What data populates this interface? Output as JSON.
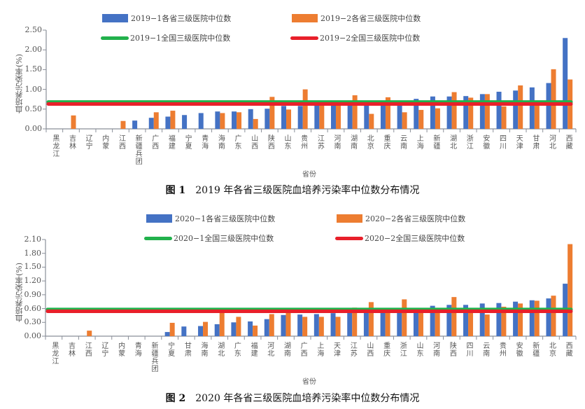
{
  "chart_data": [
    {
      "type": "bar",
      "title": "2019 年各省三级医院血培养污染率中位数分布情况",
      "figure_label": "图 1",
      "xlabel": "省份",
      "ylabel": "血培养污染率(%)",
      "ylim": [
        0,
        2.5
      ],
      "yticks": [
        "0.00",
        "0.50",
        "1.00",
        "1.50",
        "2.00",
        "2.50"
      ],
      "categories": [
        "黑龙江",
        "吉林",
        "辽宁",
        "内蒙",
        "江西",
        "新疆兵团",
        "广西",
        "福建",
        "宁夏",
        "青海",
        "海南",
        "广东",
        "山西",
        "陕西",
        "山东",
        "贵州",
        "江苏",
        "河南",
        "湖南",
        "北京",
        "重庆",
        "云南",
        "上海",
        "新疆",
        "湖北",
        "浙江",
        "安徽",
        "四川",
        "天津",
        "甘肃",
        "河北",
        "西藏"
      ],
      "series": [
        {
          "name": "2019−1各省三级医院中位数",
          "color": "#4472C4",
          "values": [
            0,
            0,
            0,
            0,
            0,
            0.21,
            0.28,
            0.31,
            0.35,
            0.4,
            0.44,
            0.44,
            0.5,
            0.51,
            0.58,
            0.58,
            0.62,
            0.62,
            0.62,
            0.62,
            0.62,
            0.62,
            0.76,
            0.82,
            0.82,
            0.83,
            0.88,
            0.94,
            0.97,
            1.05,
            1.16,
            2.3
          ]
        },
        {
          "name": "2019−2各省三级医院中位数",
          "color": "#ED7D31",
          "values": [
            0,
            0.34,
            0,
            0,
            0.2,
            0,
            0.42,
            0.46,
            0,
            0,
            0.4,
            0.42,
            0.25,
            0.81,
            0.49,
            1.0,
            0.62,
            0.62,
            0.85,
            0.38,
            0.8,
            0.42,
            0.48,
            0.52,
            0.93,
            0.79,
            0.88,
            0.57,
            1.1,
            0.62,
            1.51,
            1.25
          ]
        },
        {
          "name": "2019−1全国三级医院中位数",
          "color": "#22B14C",
          "type": "line",
          "values": [
            0.68
          ]
        },
        {
          "name": "2019−2全国三级医院中位数",
          "color": "#E8202A",
          "type": "line",
          "values": [
            0.63
          ]
        }
      ],
      "legend_position": "top",
      "grid": false
    },
    {
      "type": "bar",
      "title": "2020 年各省三级医院血培养污染率中位数分布情况",
      "figure_label": "图 2",
      "xlabel": "省份",
      "ylabel": "血培养污染率(%)",
      "ylim": [
        0,
        2.1
      ],
      "yticks": [
        "0.00",
        "0.30",
        "0.60",
        "0.90",
        "1.20",
        "1.50",
        "1.80",
        "2.10"
      ],
      "categories": [
        "黑龙江",
        "吉林",
        "江西",
        "辽宁",
        "内蒙",
        "青海",
        "新疆兵团",
        "宁夏",
        "甘肃",
        "海南",
        "湖北",
        "广东",
        "福建",
        "河北",
        "湖南",
        "广西",
        "上海",
        "天津",
        "江苏",
        "山西",
        "重庆",
        "浙江",
        "山东",
        "河南",
        "陕西",
        "四川",
        "云南",
        "贵州",
        "安徽",
        "新疆",
        "北京",
        "西藏"
      ],
      "series": [
        {
          "name": "2020−1各省三级医院中位数",
          "color": "#4472C4",
          "values": [
            0,
            0,
            0,
            0,
            0,
            0,
            0,
            0.09,
            0.21,
            0.22,
            0.26,
            0.3,
            0.32,
            0.37,
            0.46,
            0.47,
            0.48,
            0.5,
            0.58,
            0.58,
            0.58,
            0.58,
            0.58,
            0.66,
            0.68,
            0.68,
            0.71,
            0.72,
            0.75,
            0.78,
            0.82,
            1.14
          ]
        },
        {
          "name": "2020−2各省三级医院中位数",
          "color": "#ED7D31",
          "values": [
            0,
            0,
            0.12,
            0,
            0,
            0,
            0,
            0.29,
            0,
            0.31,
            0.55,
            0.42,
            0.23,
            0.48,
            0.55,
            0.42,
            0.42,
            0.42,
            0.62,
            0.74,
            0.56,
            0.8,
            0.56,
            0.56,
            0.85,
            0.56,
            0.47,
            0.64,
            0.71,
            0.77,
            0.88,
            2.0
          ]
        },
        {
          "name": "2020−1全国三级医院中位数",
          "color": "#22B14C",
          "type": "line",
          "values": [
            0.58
          ]
        },
        {
          "name": "2020−2全国三级医院中位数",
          "color": "#E8202A",
          "type": "line",
          "values": [
            0.54
          ]
        }
      ],
      "legend_position": "top",
      "grid": false
    }
  ],
  "figures": [
    {
      "caption_label": "图 1",
      "caption_text": "2019 年各省三级医院血培养污染率中位数分布情况",
      "xlabel": "省份",
      "ylabel": "血培养污染率(%)",
      "legend": {
        "bar1": "2019−1各省三级医院中位数",
        "bar2": "2019−2各省三级医院中位数",
        "line1": "2019−1全国三级医院中位数",
        "line2": "2019−2全国三级医院中位数"
      }
    },
    {
      "caption_label": "图 2",
      "caption_text": "2020 年各省三级医院血培养污染率中位数分布情况",
      "xlabel": "省份",
      "ylabel": "血培养污染率(%)",
      "legend": {
        "bar1": "2020−1各省三级医院中位数",
        "bar2": "2020−2各省三级医院中位数",
        "line1": "2020−1全国三级医院中位数",
        "line2": "2020−2全国三级医院中位数"
      }
    }
  ]
}
